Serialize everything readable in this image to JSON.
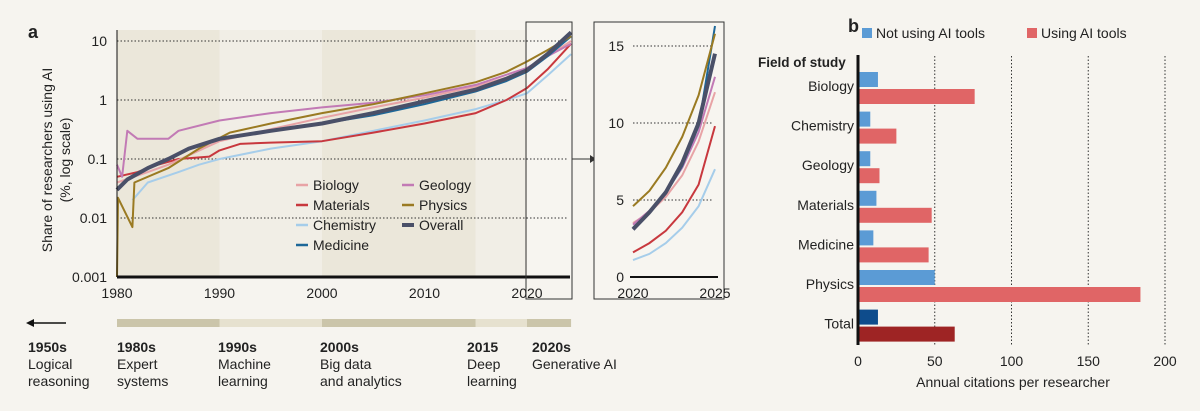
{
  "chart_data": [
    {
      "panel_label": "a",
      "type": "line",
      "ylabel": "Share of researchers using AI (%, log scale)",
      "ylabel_lines": [
        "Share of researchers using AI",
        "(%, log scale)"
      ],
      "yscale": "log",
      "ylim": [
        0.001,
        15
      ],
      "xlim": [
        1980,
        2024.5
      ],
      "yticks": [
        "10",
        "1",
        "0.1",
        "0.01",
        "0.001"
      ],
      "xticks": [
        "1980",
        "1990",
        "2000",
        "2010",
        "2020"
      ],
      "grid": "dotted horizontal at decades",
      "legend": "center",
      "series": [
        {
          "name": "Biology",
          "color": "#e8a3a6",
          "points": [
            [
              1980,
              0.04
            ],
            [
              1983,
              0.06
            ],
            [
              1985,
              0.08
            ],
            [
              1990,
              0.2
            ],
            [
              1995,
              0.32
            ],
            [
              2000,
              0.5
            ],
            [
              2005,
              0.75
            ],
            [
              2010,
              1.1
            ],
            [
              2015,
              1.7
            ],
            [
              2018,
              2.4
            ],
            [
              2020,
              3.3
            ],
            [
              2022,
              5.5
            ],
            [
              2024.3,
              10
            ]
          ]
        },
        {
          "name": "Materials",
          "color": "#c8383e",
          "points": [
            [
              1980,
              0.05
            ],
            [
              1982,
              0.06
            ],
            [
              1984,
              0.08
            ],
            [
              1986,
              0.1
            ],
            [
              1989,
              0.11
            ],
            [
              1990,
              0.14
            ],
            [
              1992,
              0.18
            ],
            [
              1995,
              0.19
            ],
            [
              2000,
              0.2
            ],
            [
              2005,
              0.28
            ],
            [
              2010,
              0.4
            ],
            [
              2015,
              0.6
            ],
            [
              2018,
              1.0
            ],
            [
              2020,
              1.6
            ],
            [
              2022,
              3.3
            ],
            [
              2024.3,
              9
            ]
          ]
        },
        {
          "name": "Chemistry",
          "color": "#a6cdea",
          "points": [
            [
              1981.5,
              0.02
            ],
            [
              1983,
              0.04
            ],
            [
              1986,
              0.06
            ],
            [
              1988,
              0.08
            ],
            [
              1990,
              0.1
            ],
            [
              1995,
              0.15
            ],
            [
              2000,
              0.2
            ],
            [
              2005,
              0.3
            ],
            [
              2010,
              0.45
            ],
            [
              2015,
              0.7
            ],
            [
              2018,
              1.0
            ],
            [
              2020,
              1.3
            ],
            [
              2022,
              2.6
            ],
            [
              2024.3,
              6
            ]
          ]
        },
        {
          "name": "Medicine",
          "color": "#1d6798",
          "points": [
            [
              1995,
              0.3
            ],
            [
              2000,
              0.4
            ],
            [
              2005,
              0.55
            ],
            [
              2010,
              0.85
            ],
            [
              2015,
              1.4
            ],
            [
              2018,
              2.1
            ],
            [
              2020,
              3.0
            ],
            [
              2022,
              5.5
            ],
            [
              2024.3,
              12
            ]
          ]
        },
        {
          "name": "Geology",
          "color": "#c27ab5",
          "points": [
            [
              1980,
              0.08
            ],
            [
              1980.5,
              0.05
            ],
            [
              1981,
              0.3
            ],
            [
              1982,
              0.22
            ],
            [
              1985,
              0.22
            ],
            [
              1986,
              0.3
            ],
            [
              1990,
              0.45
            ],
            [
              1995,
              0.6
            ],
            [
              2000,
              0.75
            ],
            [
              2005,
              0.9
            ],
            [
              2010,
              1.2
            ],
            [
              2015,
              1.8
            ],
            [
              2020,
              3.5
            ],
            [
              2022,
              5.5
            ],
            [
              2024.3,
              9
            ]
          ]
        },
        {
          "name": "Physics",
          "color": "#9a7a22",
          "points": [
            [
              1980,
              0.001
            ],
            [
              1980.1,
              0.022
            ],
            [
              1981.5,
              0.007
            ],
            [
              1981.7,
              0.04
            ],
            [
              1985,
              0.07
            ],
            [
              1988,
              0.15
            ],
            [
              1991,
              0.28
            ],
            [
              1995,
              0.4
            ],
            [
              2000,
              0.6
            ],
            [
              2005,
              0.85
            ],
            [
              2010,
              1.3
            ],
            [
              2015,
              2.0
            ],
            [
              2018,
              3.0
            ],
            [
              2020,
              4.5
            ],
            [
              2022,
              7
            ],
            [
              2024.3,
              12
            ]
          ]
        },
        {
          "name": "Overall",
          "color": "#4a5068",
          "points": [
            [
              1980,
              0.03
            ],
            [
              1981,
              0.045
            ],
            [
              1983,
              0.07
            ],
            [
              1985,
              0.1
            ],
            [
              1987,
              0.15
            ],
            [
              1990,
              0.22
            ],
            [
              1995,
              0.3
            ],
            [
              2000,
              0.4
            ],
            [
              2005,
              0.6
            ],
            [
              2010,
              0.95
            ],
            [
              2015,
              1.5
            ],
            [
              2018,
              2.3
            ],
            [
              2020,
              3.2
            ],
            [
              2022,
              6
            ],
            [
              2024.3,
              14
            ]
          ]
        }
      ],
      "inset": {
        "xlim": [
          2020,
          2025.5
        ],
        "ylim": [
          0,
          16.5
        ],
        "xticks": [
          "2020",
          "2025"
        ],
        "yticks": [
          "0",
          "5",
          "10",
          "15"
        ],
        "series": {
          "Biology": [
            [
              2020,
              3.5
            ],
            [
              2021,
              4.2
            ],
            [
              2022,
              5.2
            ],
            [
              2023,
              6.6
            ],
            [
              2024,
              8.8
            ],
            [
              2025,
              12
            ]
          ],
          "Materials": [
            [
              2020,
              1.6
            ],
            [
              2021,
              2.2
            ],
            [
              2022,
              3.0
            ],
            [
              2023,
              4.2
            ],
            [
              2024,
              6.0
            ],
            [
              2025,
              9.8
            ]
          ],
          "Chemistry": [
            [
              2020,
              1.1
            ],
            [
              2021,
              1.5
            ],
            [
              2022,
              2.2
            ],
            [
              2023,
              3.2
            ],
            [
              2024,
              4.6
            ],
            [
              2025,
              7
            ]
          ],
          "Medicine": [
            [
              2020,
              3.2
            ],
            [
              2021,
              4.2
            ],
            [
              2022,
              5.4
            ],
            [
              2023,
              7.2
            ],
            [
              2024,
              9.8
            ],
            [
              2025,
              16.3
            ]
          ],
          "Geology": [
            [
              2020,
              3.4
            ],
            [
              2021,
              4.3
            ],
            [
              2022,
              5.5
            ],
            [
              2023,
              7.1
            ],
            [
              2024,
              9.4
            ],
            [
              2025,
              13
            ]
          ],
          "Physics": [
            [
              2020,
              4.6
            ],
            [
              2021,
              5.6
            ],
            [
              2022,
              7.1
            ],
            [
              2023,
              9.1
            ],
            [
              2024,
              11.8
            ],
            [
              2025,
              15.8
            ]
          ],
          "Overall": [
            [
              2020,
              3.1
            ],
            [
              2021,
              4.2
            ],
            [
              2022,
              5.5
            ],
            [
              2023,
              7.4
            ],
            [
              2024,
              10
            ],
            [
              2025,
              14.5
            ]
          ]
        }
      },
      "timeline": [
        {
          "year": "1950s",
          "label": [
            "Logical",
            "reasoning"
          ]
        },
        {
          "year": "1980s",
          "label": [
            "Expert",
            "systems"
          ]
        },
        {
          "year": "1990s",
          "label": [
            "Machine",
            "learning"
          ]
        },
        {
          "year": "2000s",
          "label": [
            "Big data",
            "and analytics"
          ]
        },
        {
          "year": "2015",
          "label": [
            "Deep",
            "learning"
          ]
        },
        {
          "year": "2020s",
          "label": [
            "Generative AI"
          ]
        }
      ]
    },
    {
      "panel_label": "b",
      "type": "bar",
      "orientation": "horizontal",
      "category_title": "Field of study",
      "categories": [
        "Biology",
        "Chemistry",
        "Geology",
        "Materials",
        "Medicine",
        "Physics",
        "Total"
      ],
      "series": [
        {
          "name": "Not using AI tools",
          "color": "#5b9bd5",
          "values": [
            13,
            8,
            8,
            12,
            10,
            50,
            13
          ]
        },
        {
          "name": "Using AI tools",
          "color": "#e06566",
          "values": [
            76,
            25,
            14,
            48,
            46,
            184,
            63
          ]
        }
      ],
      "total_colors": [
        "#0e4c8c",
        "#9e2424"
      ],
      "xlabel": "Annual citations per researcher",
      "xlim": [
        0,
        200
      ],
      "xticks": [
        "0",
        "50",
        "100",
        "150",
        "200"
      ],
      "grid": "dotted vertical",
      "legend": "top"
    }
  ]
}
